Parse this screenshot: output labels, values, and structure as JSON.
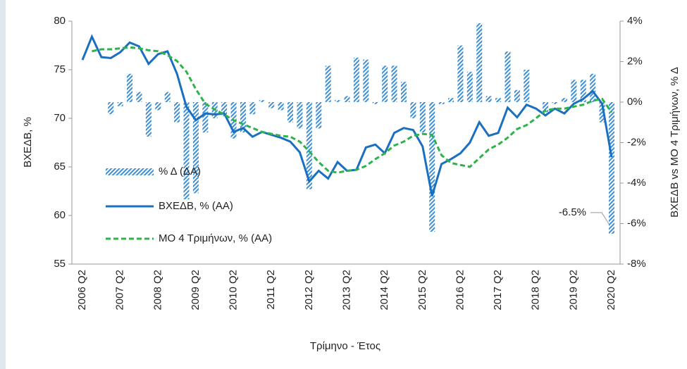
{
  "chart_data": {
    "type": "bar_line",
    "x_label": "Τρίμηνο - Έτος",
    "y_label": "ΒΧΕΔΒ, %",
    "y2_label": "ΒΧΕΔΒ vs ΜΟ 4 Τριμήνων, % Δ",
    "categories": [
      "2006 Q2",
      null,
      null,
      null,
      "2007 Q2",
      null,
      null,
      null,
      "2008 Q2",
      null,
      null,
      null,
      "2009 Q2",
      null,
      null,
      null,
      "2010 Q2",
      null,
      null,
      null,
      "2011 Q2",
      null,
      null,
      null,
      "2012 Q2",
      null,
      null,
      null,
      "2013 Q2",
      null,
      null,
      null,
      "2014 Q2",
      null,
      null,
      null,
      "2015 Q2",
      null,
      null,
      null,
      "2016 Q2",
      null,
      null,
      null,
      "2017 Q2",
      null,
      null,
      null,
      "2018 Q2",
      null,
      null,
      null,
      "2019 Q2",
      null,
      null,
      null,
      "2020 Q2"
    ],
    "ylim": [
      55,
      80
    ],
    "yticks": [
      55,
      60,
      65,
      70,
      75,
      80
    ],
    "y2lim": [
      -8,
      4
    ],
    "y2ticks": [
      {
        "value": -8,
        "label": "-8%"
      },
      {
        "value": -6,
        "label": "-6%"
      },
      {
        "value": -4,
        "label": "-4%"
      },
      {
        "value": -2,
        "label": "-2%"
      },
      {
        "value": 0,
        "label": "0%"
      },
      {
        "value": 2,
        "label": "2%"
      },
      {
        "value": 4,
        "label": "4%"
      }
    ],
    "series": [
      {
        "name": "% Δ (ΔΑ)",
        "kind": "bar",
        "axis": "y2",
        "color": "#3d8fd6",
        "values": [
          null,
          null,
          null,
          -0.6,
          -0.2,
          1.4,
          0.5,
          -1.7,
          -0.4,
          0.5,
          -1.0,
          -4.8,
          -4.5,
          -1.5,
          -0.8,
          -0.7,
          -1.8,
          -1.5,
          -0.6,
          0.1,
          -0.3,
          -0.4,
          -1.0,
          -1.3,
          -4.3,
          -1.3,
          1.8,
          0.1,
          0.3,
          2.2,
          2.1,
          -0.1,
          1.8,
          1.8,
          1.0,
          -0.8,
          -1.5,
          -6.4,
          -0.1,
          0.2,
          2.8,
          1.5,
          3.9,
          0.3,
          0.2,
          2.5,
          0.6,
          1.6,
          0,
          -0.5,
          -0.1,
          0.2,
          1.1,
          1.1,
          1.4,
          -1.0,
          -6.5
        ],
        "value_labels": [
          null,
          null,
          null,
          null,
          null,
          null,
          null,
          null,
          null,
          null,
          null,
          null,
          null,
          null,
          null,
          null,
          null,
          null,
          null,
          null,
          null,
          null,
          null,
          null,
          null,
          null,
          null,
          null,
          null,
          null,
          null,
          null,
          null,
          null,
          null,
          null,
          null,
          null,
          null,
          null,
          null,
          null,
          null,
          null,
          null,
          null,
          null,
          null,
          null,
          null,
          null,
          null,
          null,
          null,
          null,
          null,
          "-6.5%"
        ]
      },
      {
        "name": "ΒΧΕΔΒ, % (ΑΑ)",
        "kind": "line",
        "color": "#1a6fc0",
        "values": [
          76.0,
          78.4,
          76.3,
          76.2,
          76.8,
          77.8,
          77.4,
          75.6,
          76.6,
          76.9,
          74.6,
          71.2,
          69.8,
          70.5,
          70.4,
          70.5,
          68.6,
          69.0,
          68.1,
          68.6,
          68.3,
          68.0,
          67.6,
          66.5,
          63.5,
          64.6,
          63.8,
          65.5,
          64.6,
          64.7,
          67.0,
          67.3,
          66.4,
          68.5,
          69.0,
          68.8,
          67.1,
          62.0,
          65.3,
          65.8,
          66.4,
          67.5,
          69.6,
          68.2,
          68.5,
          71.1,
          70.1,
          71.4,
          71.0,
          70.3,
          71.0,
          70.5,
          71.5,
          72.0,
          72.8,
          71.5,
          66.0
        ]
      },
      {
        "name": "ΜΟ 4 Τριμήνων, % (ΑΑ)",
        "kind": "dashed",
        "color": "#2db34a",
        "values": [
          null,
          76.9,
          77.1,
          77.1,
          77.2,
          77.3,
          77.2,
          77.0,
          76.9,
          76.5,
          75.9,
          74.8,
          73.0,
          71.5,
          70.9,
          70.4,
          69.8,
          69.4,
          69.0,
          68.6,
          68.4,
          68.2,
          68.1,
          67.6,
          66.6,
          65.5,
          64.6,
          64.4,
          64.6,
          64.7,
          65.1,
          65.8,
          66.4,
          67.2,
          67.6,
          68.2,
          68.4,
          68.3,
          66.2,
          65.4,
          65.2,
          65.0,
          65.9,
          66.8,
          67.3,
          68.0,
          68.9,
          69.3,
          70.0,
          70.8,
          71.0,
          71.0,
          71.2,
          71.4,
          71.8,
          72.0,
          70.6
        ]
      }
    ]
  }
}
